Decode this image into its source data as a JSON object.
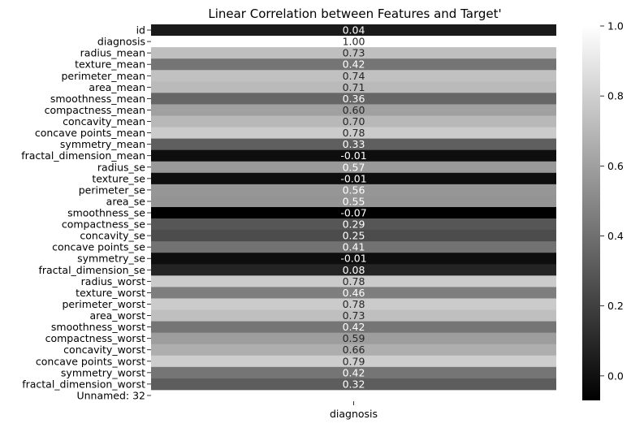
{
  "chart_data": {
    "type": "heatmap",
    "title": "Linear Correlation between Features and Target'",
    "xlabel": "",
    "ylabel": "",
    "columns": [
      "diagnosis"
    ],
    "rows": [
      {
        "label": "id",
        "value": 0.04,
        "text": "0.04"
      },
      {
        "label": "diagnosis",
        "value": 1.0,
        "text": "1.00"
      },
      {
        "label": "radius_mean",
        "value": 0.73,
        "text": "0.73"
      },
      {
        "label": "texture_mean",
        "value": 0.42,
        "text": "0.42"
      },
      {
        "label": "perimeter_mean",
        "value": 0.74,
        "text": "0.74"
      },
      {
        "label": "area_mean",
        "value": 0.71,
        "text": "0.71"
      },
      {
        "label": "smoothness_mean",
        "value": 0.36,
        "text": "0.36"
      },
      {
        "label": "compactness_mean",
        "value": 0.6,
        "text": "0.60"
      },
      {
        "label": "concavity_mean",
        "value": 0.7,
        "text": "0.70"
      },
      {
        "label": "concave points_mean",
        "value": 0.78,
        "text": "0.78"
      },
      {
        "label": "symmetry_mean",
        "value": 0.33,
        "text": "0.33"
      },
      {
        "label": "fractal_dimension_mean",
        "value": -0.01,
        "text": "-0.01"
      },
      {
        "label": "radius_se",
        "value": 0.57,
        "text": "0.57"
      },
      {
        "label": "texture_se",
        "value": -0.01,
        "text": "-0.01"
      },
      {
        "label": "perimeter_se",
        "value": 0.56,
        "text": "0.56"
      },
      {
        "label": "area_se",
        "value": 0.55,
        "text": "0.55"
      },
      {
        "label": "smoothness_se",
        "value": -0.07,
        "text": "-0.07"
      },
      {
        "label": "compactness_se",
        "value": 0.29,
        "text": "0.29"
      },
      {
        "label": "concavity_se",
        "value": 0.25,
        "text": "0.25"
      },
      {
        "label": "concave points_se",
        "value": 0.41,
        "text": "0.41"
      },
      {
        "label": "symmetry_se",
        "value": -0.01,
        "text": "-0.01"
      },
      {
        "label": "fractal_dimension_se",
        "value": 0.08,
        "text": "0.08"
      },
      {
        "label": "radius_worst",
        "value": 0.78,
        "text": "0.78"
      },
      {
        "label": "texture_worst",
        "value": 0.46,
        "text": "0.46"
      },
      {
        "label": "perimeter_worst",
        "value": 0.78,
        "text": "0.78"
      },
      {
        "label": "area_worst",
        "value": 0.73,
        "text": "0.73"
      },
      {
        "label": "smoothness_worst",
        "value": 0.42,
        "text": "0.42"
      },
      {
        "label": "compactness_worst",
        "value": 0.59,
        "text": "0.59"
      },
      {
        "label": "concavity_worst",
        "value": 0.66,
        "text": "0.66"
      },
      {
        "label": "concave points_worst",
        "value": 0.79,
        "text": "0.79"
      },
      {
        "label": "symmetry_worst",
        "value": 0.42,
        "text": "0.42"
      },
      {
        "label": "fractal_dimension_worst",
        "value": 0.32,
        "text": "0.32"
      },
      {
        "label": "Unnamed: 32",
        "value": null,
        "text": ""
      }
    ],
    "colormap": "gray",
    "colorbar": {
      "vmin": -0.07,
      "vmax": 1.0,
      "ticks": [
        0.0,
        0.2,
        0.4,
        0.6,
        0.8,
        1.0
      ],
      "tick_labels": [
        "0.0",
        "0.2",
        "0.4",
        "0.6",
        "0.8",
        "1.0"
      ]
    },
    "grid": false,
    "legend": "colorbar-right"
  }
}
